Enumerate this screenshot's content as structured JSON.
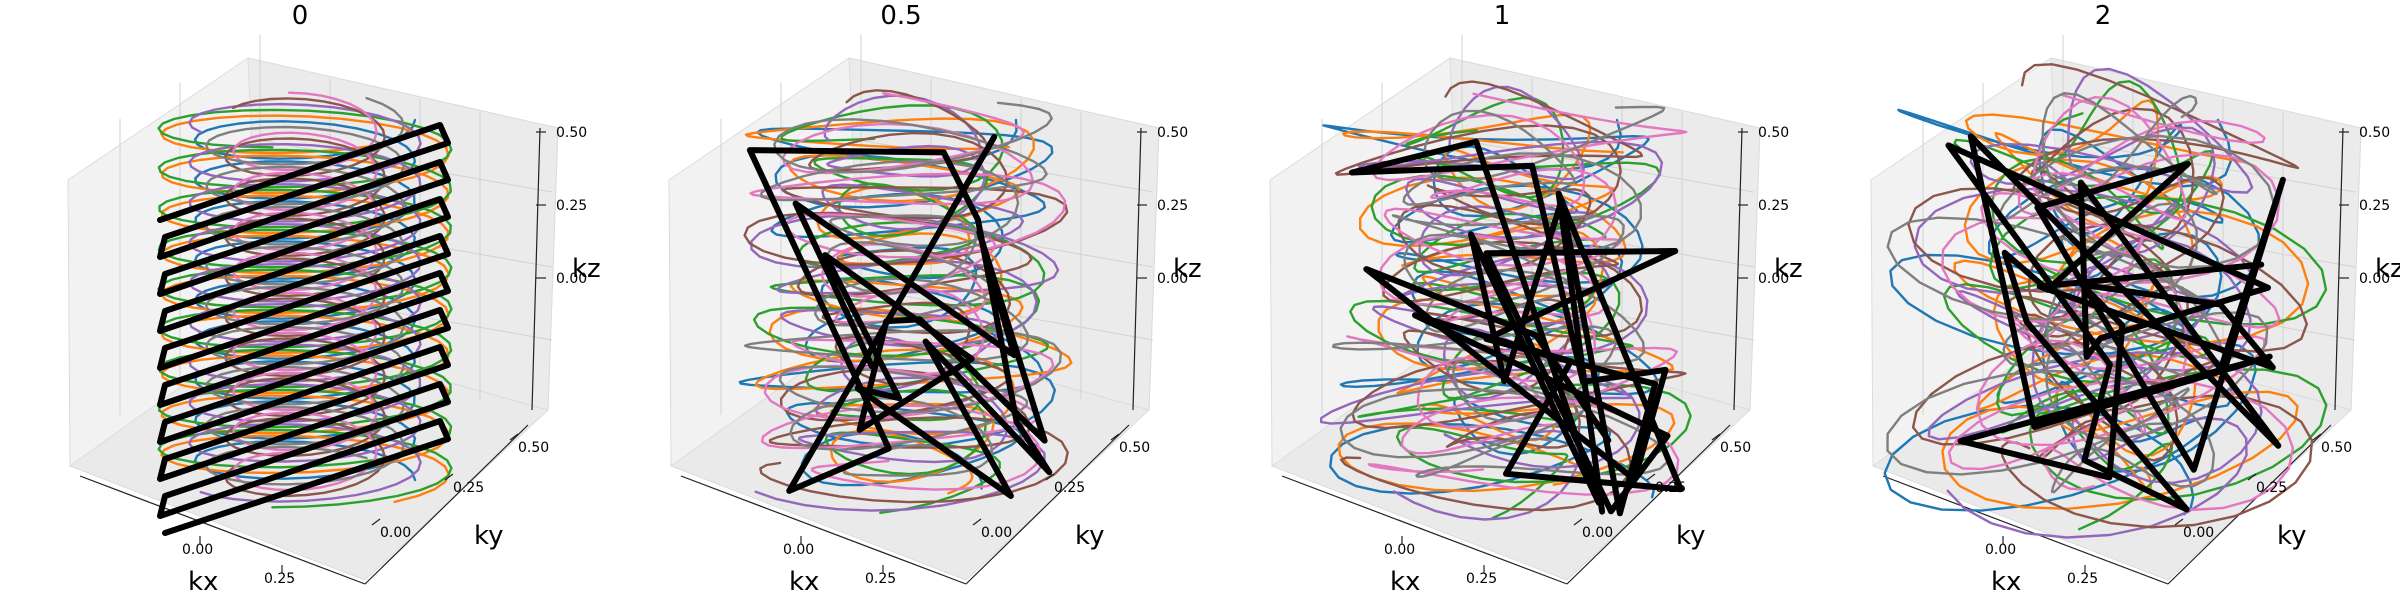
{
  "chart_data": [
    {
      "type": "line3d",
      "title": "0",
      "xlabel": "kx",
      "ylabel": "ky",
      "zlabel": "kz",
      "x_ticks": [
        "0.00",
        "0.25"
      ],
      "y_ticks": [
        "0.00",
        "0.25",
        "0.50"
      ],
      "z_ticks": [
        "0.00",
        "0.25",
        "0.50"
      ],
      "grid": true,
      "series_colors": [
        "#1f77b4",
        "#ff7f0e",
        "#2ca02c",
        "#9467bd",
        "#8c564b",
        "#e377c2",
        "#7f7f7f",
        "#000000"
      ],
      "highlight_color": "#000000"
    },
    {
      "type": "line3d",
      "title": "0.5",
      "xlabel": "kx",
      "ylabel": "ky",
      "zlabel": "kz",
      "x_ticks": [
        "0.00",
        "0.25"
      ],
      "y_ticks": [
        "0.00",
        "0.25",
        "0.50"
      ],
      "z_ticks": [
        "0.00",
        "0.25",
        "0.50"
      ],
      "grid": true,
      "series_colors": [
        "#1f77b4",
        "#ff7f0e",
        "#2ca02c",
        "#9467bd",
        "#8c564b",
        "#e377c2",
        "#7f7f7f",
        "#000000"
      ],
      "highlight_color": "#000000"
    },
    {
      "type": "line3d",
      "title": "1",
      "xlabel": "kx",
      "ylabel": "ky",
      "zlabel": "kz",
      "x_ticks": [
        "0.00",
        "0.25"
      ],
      "y_ticks": [
        "0.00",
        "0.25",
        "0.50"
      ],
      "z_ticks": [
        "0.00",
        "0.25",
        "0.50"
      ],
      "grid": true,
      "series_colors": [
        "#1f77b4",
        "#ff7f0e",
        "#2ca02c",
        "#9467bd",
        "#8c564b",
        "#e377c2",
        "#7f7f7f",
        "#000000"
      ],
      "highlight_color": "#000000"
    },
    {
      "type": "line3d",
      "title": "2",
      "xlabel": "kx",
      "ylabel": "ky",
      "zlabel": "kz",
      "x_ticks": [
        "0.00",
        "0.25"
      ],
      "y_ticks": [
        "0.00",
        "0.25",
        "0.50"
      ],
      "z_ticks": [
        "0.00",
        "0.25",
        "0.50"
      ],
      "grid": true,
      "series_colors": [
        "#1f77b4",
        "#ff7f0e",
        "#2ca02c",
        "#9467bd",
        "#8c564b",
        "#e377c2",
        "#7f7f7f",
        "#000000"
      ],
      "highlight_color": "#000000"
    }
  ]
}
